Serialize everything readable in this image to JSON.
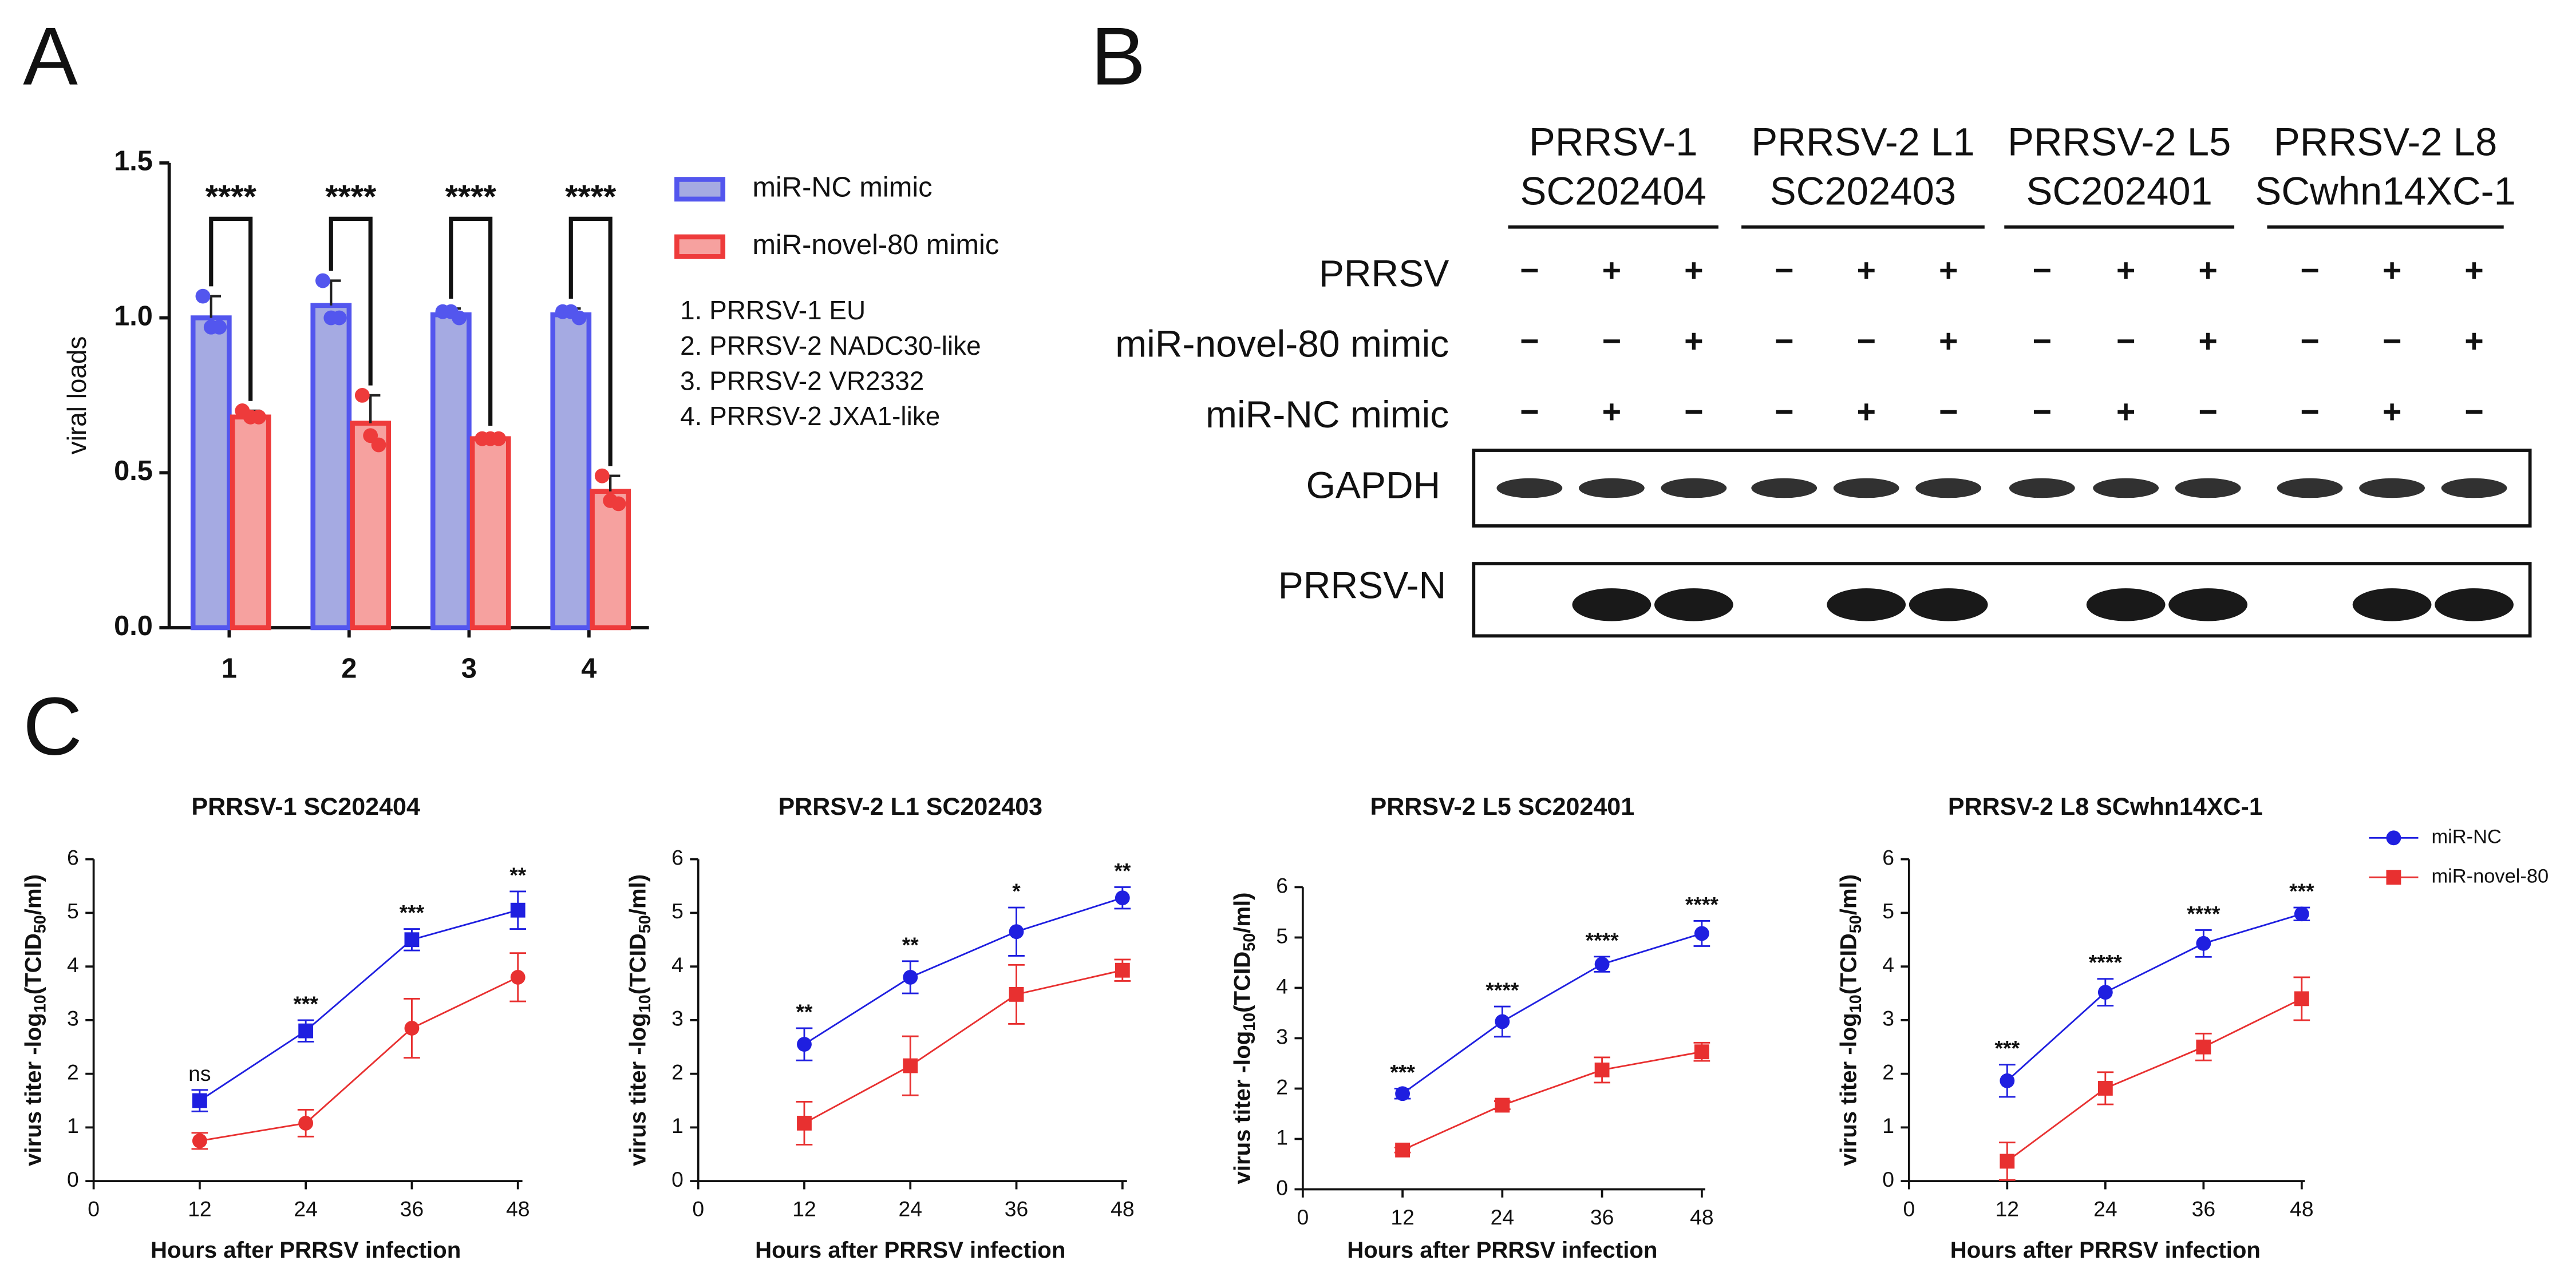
{
  "panels": [
    "A",
    "B",
    "C"
  ],
  "chart_data": [
    {
      "type": "bar",
      "categories": [
        "1",
        "2",
        "3",
        "4"
      ],
      "ylabel": "viral loads",
      "ylim": [
        0,
        1.5
      ],
      "yticks": [
        {
          "value": 0,
          "label": "0.0"
        },
        0.5,
        {
          "value": 1,
          "label": "1.0"
        },
        1.5
      ],
      "series": [
        {
          "name": "miR-NC mimic",
          "color": "#5356ee",
          "fill": "#a5aae2",
          "values": [
            1.0,
            1.04,
            1.01,
            1.01
          ],
          "errors": [
            0.07,
            0.08,
            0.02,
            0.02
          ],
          "points": [
            [
              1.07,
              0.97,
              0.97
            ],
            [
              1.12,
              1.0,
              1.0
            ],
            [
              1.02,
              1.02,
              1.0
            ],
            [
              1.02,
              1.02,
              1.0
            ]
          ]
        },
        {
          "name": "miR-novel-80 mimic",
          "color": "#ee3b3b",
          "fill": "#f6a19f",
          "values": [
            0.68,
            0.66,
            0.61,
            0.44
          ],
          "errors": [
            0.02,
            0.09,
            0.01,
            0.05
          ],
          "points": [
            [
              0.7,
              0.68,
              0.68
            ],
            [
              0.75,
              0.62,
              0.59
            ],
            [
              0.61,
              0.61,
              0.61
            ],
            [
              0.49,
              0.41,
              0.4
            ]
          ]
        }
      ],
      "annotations": [
        "****",
        "****",
        "****",
        "****"
      ],
      "notes": [
        "1. PRRSV-1  EU",
        "2. PRRSV-2 NADC30-like",
        "3. PRRSV-2 VR2332",
        "4. PRRSV-2 JXA1-like"
      ]
    },
    {
      "type": "line",
      "title": "PRRSV-1 SC202404",
      "xlabel": "Hours after PRRSV infection",
      "ylabel_parts": [
        "virus titer -log",
        "10",
        "(TCID",
        "50",
        "/ml)"
      ],
      "x": [
        12,
        24,
        36,
        48
      ],
      "xlim": [
        0,
        50
      ],
      "xticks": [
        0,
        12,
        24,
        36,
        48
      ],
      "ylim": [
        0,
        6
      ],
      "yticks": [
        0,
        1,
        2,
        3,
        4,
        5,
        6
      ],
      "legend": false,
      "annotations": [
        "ns",
        "***",
        "***",
        "**"
      ],
      "series": [
        {
          "name": "miR-NC",
          "color": "#1f1fe0",
          "marker": "square",
          "values": [
            1.5,
            2.8,
            4.5,
            5.05
          ],
          "errors": [
            0.2,
            0.2,
            0.2,
            0.35
          ]
        },
        {
          "name": "miR-novel-80",
          "color": "#e83030",
          "marker": "circle",
          "values": [
            0.75,
            1.08,
            2.85,
            3.8
          ],
          "errors": [
            0.15,
            0.25,
            0.55,
            0.45
          ]
        }
      ]
    },
    {
      "type": "line",
      "title": "PRRSV-2 L1 SC202403",
      "xlabel": "Hours after PRRSV infection",
      "ylabel_parts": [
        "virus titer -log",
        "10",
        "(TCID",
        "50",
        "/ml)"
      ],
      "x": [
        12,
        24,
        36,
        48
      ],
      "xlim": [
        0,
        50
      ],
      "xticks": [
        0,
        12,
        24,
        36,
        48
      ],
      "ylim": [
        0,
        6
      ],
      "yticks": [
        0,
        1,
        2,
        3,
        4,
        5,
        6
      ],
      "legend": false,
      "annotations": [
        "**",
        "**",
        "*",
        "**"
      ],
      "series": [
        {
          "name": "miR-NC",
          "color": "#1f1fe0",
          "marker": "circle",
          "values": [
            2.55,
            3.8,
            4.65,
            5.28
          ],
          "errors": [
            0.3,
            0.3,
            0.45,
            0.2
          ]
        },
        {
          "name": "miR-novel-80",
          "color": "#e83030",
          "marker": "square",
          "values": [
            1.08,
            2.15,
            3.48,
            3.93
          ],
          "errors": [
            0.4,
            0.55,
            0.55,
            0.2
          ]
        }
      ]
    },
    {
      "type": "line",
      "title": "PRRSV-2 L5 SC202401",
      "xlabel": "Hours after PRRSV infection",
      "ylabel_parts": [
        "virus titer -log",
        "10",
        "(TCID",
        "50",
        "/ml)"
      ],
      "x": [
        12,
        24,
        36,
        48
      ],
      "xlim": [
        0,
        50
      ],
      "xticks": [
        0,
        12,
        24,
        36,
        48
      ],
      "ylim": [
        0,
        6
      ],
      "yticks": [
        0,
        1,
        2,
        3,
        4,
        5,
        6
      ],
      "legend": false,
      "annotations": [
        "***",
        "****",
        "****",
        "****"
      ],
      "series": [
        {
          "name": "miR-NC",
          "color": "#1f1fe0",
          "marker": "circle",
          "values": [
            1.9,
            3.33,
            4.47,
            5.08
          ],
          "errors": [
            0.1,
            0.3,
            0.15,
            0.25
          ]
        },
        {
          "name": "miR-novel-80",
          "color": "#e83030",
          "marker": "square",
          "values": [
            0.78,
            1.67,
            2.37,
            2.73
          ],
          "errors": [
            0.05,
            0.08,
            0.25,
            0.18
          ]
        }
      ]
    },
    {
      "type": "line",
      "title": "PRRSV-2 L8 SCwhn14XC-1",
      "xlabel": "Hours after PRRSV infection",
      "ylabel_parts": [
        "virus titer -log",
        "10",
        "(TCID",
        "50",
        "/ml)"
      ],
      "x": [
        12,
        24,
        36,
        48
      ],
      "xlim": [
        0,
        50
      ],
      "xticks": [
        0,
        12,
        24,
        36,
        48
      ],
      "ylim": [
        0,
        6
      ],
      "yticks": [
        0,
        1,
        2,
        3,
        4,
        5,
        6
      ],
      "legend": true,
      "annotations": [
        "***",
        "****",
        "****",
        "***"
      ],
      "series": [
        {
          "name": "miR-NC",
          "color": "#1f1fe0",
          "marker": "circle",
          "values": [
            1.87,
            3.52,
            4.43,
            4.98
          ],
          "errors": [
            0.3,
            0.25,
            0.25,
            0.12
          ]
        },
        {
          "name": "miR-novel-80",
          "color": "#e83030",
          "marker": "square",
          "values": [
            0.37,
            1.73,
            2.5,
            3.4
          ],
          "errors": [
            0.35,
            0.3,
            0.25,
            0.4
          ]
        }
      ]
    }
  ],
  "blot": {
    "groups": [
      [
        "PRRSV-1",
        "SC202404"
      ],
      [
        "PRRSV-2 L1",
        "SC202403"
      ],
      [
        "PRRSV-2 L5",
        "SC202401"
      ],
      [
        "PRRSV-2 L8",
        "SCwhn14XC-1"
      ]
    ],
    "rows": [
      {
        "label": "PRRSV",
        "signs": [
          "−",
          "+",
          "+",
          "−",
          "+",
          "+",
          "−",
          "+",
          "+",
          "−",
          "+",
          "+"
        ]
      },
      {
        "label": "miR-novel-80 mimic",
        "signs": [
          "−",
          "−",
          "+",
          "−",
          "−",
          "+",
          "−",
          "−",
          "+",
          "−",
          "−",
          "+"
        ]
      },
      {
        "label": "miR-NC mimic",
        "signs": [
          "−",
          "+",
          "−",
          "−",
          "+",
          "−",
          "−",
          "+",
          "−",
          "−",
          "+",
          "−"
        ]
      }
    ],
    "bands": [
      "GAPDH",
      "PRRSV-N"
    ]
  }
}
